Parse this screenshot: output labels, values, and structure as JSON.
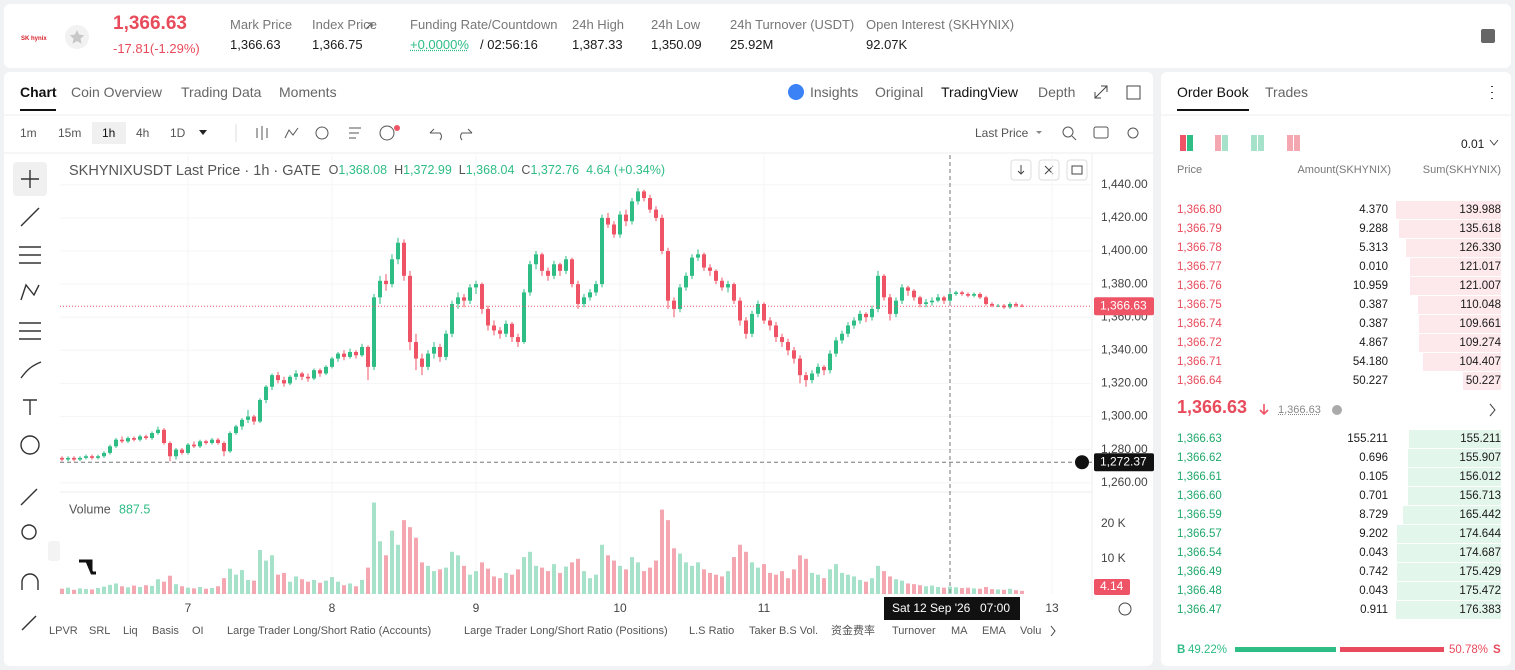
{
  "header": {
    "logo": "SK hynix",
    "price": "1,366.63",
    "change": "-17.81(-1.29%)",
    "stats": [
      {
        "label": "Mark Price",
        "value": "1,366.63"
      },
      {
        "label": "Index Price",
        "value": "1,366.75"
      },
      {
        "label": "Funding Rate/Countdown",
        "value": "+0.0000%",
        "extra": "/ 02:56:16"
      },
      {
        "label": "24h High",
        "value": "1,387.33"
      },
      {
        "label": "24h Low",
        "value": "1,350.09"
      },
      {
        "label": "24h Turnover (USDT)",
        "value": "25.92M"
      },
      {
        "label": "Open Interest (SKHYNIX)",
        "value": "92.07K"
      }
    ]
  },
  "chart_tabs": [
    "Chart",
    "Coin Overview",
    "Trading Data",
    "Moments"
  ],
  "view_tabs": [
    "Insights",
    "Original",
    "TradingView",
    "Depth"
  ],
  "intervals": [
    "1m",
    "15m",
    "1h",
    "4h",
    "1D"
  ],
  "selected_interval": "1h",
  "price_source": "Last Price",
  "indicators": [
    "LPVR",
    "SRL",
    "Liq",
    "Basis",
    "OI",
    "Large Trader Long/Short Ratio (Accounts)",
    "Large Trader Long/Short Ratio (Positions)",
    "L.S Ratio",
    "Taker B.S Vol.",
    "资金费率",
    "Turnover",
    "MA",
    "EMA",
    "Volu"
  ],
  "chart_data": {
    "type": "candlestick",
    "title": "SKHYNIXUSDT Last Price · 1h · GATE",
    "ohlc_legend": [
      {
        "key": "O",
        "value": "1,368.08"
      },
      {
        "key": "H",
        "value": "1,372.99"
      },
      {
        "key": "L",
        "value": "1,368.04"
      },
      {
        "key": "C",
        "value": "1,372.76"
      }
    ],
    "ohlc_change": "4.64 (+0.34%)",
    "up_color": "#2ebd85",
    "down_color": "#ef5466",
    "volume_up_color": "#a6e2c9",
    "volume_down_color": "#f4a7b1",
    "ylim": [
      1255,
      1458
    ],
    "yticks": [
      {
        "value": 1260,
        "label": "1,260.00"
      },
      {
        "value": 1280,
        "label": "1,280.00"
      },
      {
        "value": 1300,
        "label": "1,300.00"
      },
      {
        "value": 1320,
        "label": "1,320.00"
      },
      {
        "value": 1340,
        "label": "1,340.00"
      },
      {
        "value": 1360,
        "label": "1,360.00"
      },
      {
        "value": 1380,
        "label": "1,380.00"
      },
      {
        "value": 1400,
        "label": "1,400.00"
      },
      {
        "value": 1420,
        "label": "1,420.00"
      },
      {
        "value": 1440,
        "label": "1,440.00"
      }
    ],
    "xticks": [
      {
        "value": 21,
        "label": "7"
      },
      {
        "value": 45,
        "label": "8"
      },
      {
        "value": 69,
        "label": "9"
      },
      {
        "value": 93,
        "label": "10"
      },
      {
        "value": 117,
        "label": "11"
      },
      {
        "value": 165,
        "label": "13"
      }
    ],
    "grid": true,
    "last_price": {
      "value": 1366.63,
      "label": "1,366.63"
    },
    "crosshair": {
      "index": 148,
      "price": {
        "value": 1272.37,
        "label": "1,272.37"
      },
      "date": "Sat 12 Sep '26",
      "time": "07:00"
    },
    "volume_title": "Volume",
    "volume_ylim": [
      0,
      29000
    ],
    "volume_yticks": [
      {
        "value": 10000,
        "label": "10 K"
      },
      {
        "value": 20000,
        "label": "20 K"
      }
    ],
    "volume_marker": "4.14",
    "candles": [
      [
        1275,
        1276,
        1273,
        1274
      ],
      [
        1274,
        1276,
        1273,
        1275
      ],
      [
        1275,
        1276,
        1273,
        1274
      ],
      [
        1274,
        1276,
        1273,
        1275
      ],
      [
        1275,
        1277,
        1274,
        1276
      ],
      [
        1276,
        1277,
        1274,
        1275
      ],
      [
        1275,
        1277,
        1274,
        1276
      ],
      [
        1276,
        1279,
        1275,
        1278
      ],
      [
        1278,
        1283,
        1277,
        1282
      ],
      [
        1282,
        1287,
        1281,
        1286
      ],
      [
        1286,
        1288,
        1284,
        1285
      ],
      [
        1285,
        1288,
        1284,
        1287
      ],
      [
        1287,
        1288,
        1285,
        1286
      ],
      [
        1286,
        1289,
        1285,
        1288
      ],
      [
        1288,
        1289,
        1286,
        1287
      ],
      [
        1287,
        1291,
        1286,
        1290
      ],
      [
        1290,
        1294,
        1289,
        1292
      ],
      [
        1292,
        1293,
        1283,
        1284
      ],
      [
        1284,
        1285,
        1273,
        1276
      ],
      [
        1276,
        1281,
        1274,
        1280
      ],
      [
        1280,
        1281,
        1277,
        1278
      ],
      [
        1278,
        1284,
        1277,
        1283
      ],
      [
        1283,
        1285,
        1281,
        1282
      ],
      [
        1282,
        1286,
        1281,
        1285
      ],
      [
        1285,
        1286,
        1283,
        1284
      ],
      [
        1284,
        1287,
        1283,
        1286
      ],
      [
        1286,
        1287,
        1283,
        1284
      ],
      [
        1284,
        1285,
        1276,
        1279
      ],
      [
        1279,
        1291,
        1278,
        1290
      ],
      [
        1290,
        1295,
        1289,
        1294
      ],
      [
        1294,
        1299,
        1292,
        1298
      ],
      [
        1298,
        1304,
        1296,
        1300
      ],
      [
        1300,
        1301,
        1295,
        1297
      ],
      [
        1297,
        1311,
        1296,
        1310
      ],
      [
        1310,
        1319,
        1308,
        1318
      ],
      [
        1318,
        1326,
        1316,
        1325
      ],
      [
        1325,
        1327,
        1320,
        1322
      ],
      [
        1322,
        1324,
        1318,
        1320
      ],
      [
        1320,
        1325,
        1319,
        1324
      ],
      [
        1324,
        1328,
        1322,
        1326
      ],
      [
        1326,
        1327,
        1322,
        1324
      ],
      [
        1324,
        1326,
        1321,
        1323
      ],
      [
        1323,
        1329,
        1322,
        1328
      ],
      [
        1328,
        1329,
        1324,
        1326
      ],
      [
        1326,
        1331,
        1325,
        1330
      ],
      [
        1330,
        1336,
        1329,
        1335
      ],
      [
        1335,
        1339,
        1333,
        1338
      ],
      [
        1338,
        1340,
        1334,
        1336
      ],
      [
        1336,
        1341,
        1335,
        1339
      ],
      [
        1339,
        1340,
        1335,
        1337
      ],
      [
        1337,
        1344,
        1336,
        1342
      ],
      [
        1342,
        1343,
        1322,
        1330
      ],
      [
        1330,
        1374,
        1328,
        1372
      ],
      [
        1372,
        1385,
        1368,
        1382
      ],
      [
        1382,
        1386,
        1376,
        1380
      ],
      [
        1380,
        1398,
        1378,
        1395
      ],
      [
        1395,
        1408,
        1392,
        1405
      ],
      [
        1405,
        1407,
        1382,
        1385
      ],
      [
        1385,
        1388,
        1340,
        1345
      ],
      [
        1345,
        1350,
        1328,
        1335
      ],
      [
        1335,
        1338,
        1325,
        1330
      ],
      [
        1330,
        1340,
        1328,
        1338
      ],
      [
        1338,
        1345,
        1335,
        1342
      ],
      [
        1342,
        1344,
        1333,
        1336
      ],
      [
        1336,
        1352,
        1334,
        1350
      ],
      [
        1350,
        1370,
        1348,
        1368
      ],
      [
        1368,
        1375,
        1365,
        1372
      ],
      [
        1372,
        1374,
        1366,
        1370
      ],
      [
        1370,
        1380,
        1368,
        1378
      ],
      [
        1378,
        1382,
        1374,
        1380
      ],
      [
        1380,
        1381,
        1362,
        1365
      ],
      [
        1365,
        1367,
        1352,
        1355
      ],
      [
        1355,
        1358,
        1349,
        1352
      ],
      [
        1352,
        1354,
        1347,
        1350
      ],
      [
        1350,
        1358,
        1348,
        1356
      ],
      [
        1356,
        1357,
        1345,
        1348
      ],
      [
        1348,
        1350,
        1342,
        1345
      ],
      [
        1345,
        1377,
        1344,
        1375
      ],
      [
        1375,
        1394,
        1373,
        1392
      ],
      [
        1392,
        1400,
        1389,
        1398
      ],
      [
        1398,
        1399,
        1385,
        1388
      ],
      [
        1388,
        1390,
        1382,
        1385
      ],
      [
        1385,
        1394,
        1383,
        1392
      ],
      [
        1392,
        1393,
        1385,
        1388
      ],
      [
        1388,
        1397,
        1386,
        1395
      ],
      [
        1395,
        1396,
        1378,
        1380
      ],
      [
        1380,
        1382,
        1365,
        1368
      ],
      [
        1368,
        1374,
        1366,
        1372
      ],
      [
        1372,
        1377,
        1370,
        1375
      ],
      [
        1375,
        1382,
        1373,
        1380
      ],
      [
        1380,
        1422,
        1378,
        1420
      ],
      [
        1420,
        1423,
        1414,
        1416
      ],
      [
        1416,
        1418,
        1408,
        1410
      ],
      [
        1410,
        1424,
        1408,
        1422
      ],
      [
        1422,
        1425,
        1415,
        1418
      ],
      [
        1418,
        1432,
        1416,
        1430
      ],
      [
        1430,
        1438,
        1428,
        1436
      ],
      [
        1436,
        1437,
        1430,
        1432
      ],
      [
        1432,
        1434,
        1423,
        1425
      ],
      [
        1425,
        1427,
        1418,
        1420
      ],
      [
        1420,
        1422,
        1398,
        1400
      ],
      [
        1400,
        1402,
        1365,
        1370
      ],
      [
        1370,
        1372,
        1360,
        1365
      ],
      [
        1365,
        1380,
        1363,
        1378
      ],
      [
        1378,
        1387,
        1376,
        1385
      ],
      [
        1385,
        1398,
        1383,
        1396
      ],
      [
        1396,
        1401,
        1394,
        1398
      ],
      [
        1398,
        1399,
        1388,
        1390
      ],
      [
        1390,
        1392,
        1385,
        1388
      ],
      [
        1388,
        1389,
        1380,
        1382
      ],
      [
        1382,
        1384,
        1376,
        1378
      ],
      [
        1378,
        1382,
        1375,
        1380
      ],
      [
        1380,
        1381,
        1368,
        1370
      ],
      [
        1370,
        1372,
        1355,
        1358
      ],
      [
        1358,
        1360,
        1347,
        1350
      ],
      [
        1350,
        1364,
        1348,
        1362
      ],
      [
        1362,
        1370,
        1360,
        1368
      ],
      [
        1368,
        1369,
        1356,
        1358
      ],
      [
        1358,
        1360,
        1352,
        1355
      ],
      [
        1355,
        1357,
        1345,
        1348
      ],
      [
        1348,
        1350,
        1342,
        1345
      ],
      [
        1345,
        1347,
        1337,
        1340
      ],
      [
        1340,
        1342,
        1332,
        1335
      ],
      [
        1335,
        1337,
        1320,
        1325
      ],
      [
        1325,
        1327,
        1318,
        1322
      ],
      [
        1322,
        1328,
        1320,
        1326
      ],
      [
        1326,
        1332,
        1324,
        1330
      ],
      [
        1330,
        1331,
        1325,
        1328
      ],
      [
        1328,
        1340,
        1326,
        1338
      ],
      [
        1338,
        1348,
        1336,
        1346
      ],
      [
        1346,
        1352,
        1344,
        1350
      ],
      [
        1350,
        1357,
        1348,
        1355
      ],
      [
        1355,
        1360,
        1353,
        1358
      ],
      [
        1358,
        1364,
        1356,
        1362
      ],
      [
        1362,
        1363,
        1357,
        1360
      ],
      [
        1360,
        1367,
        1358,
        1365
      ],
      [
        1365,
        1388,
        1363,
        1385
      ],
      [
        1385,
        1386,
        1370,
        1372
      ],
      [
        1372,
        1374,
        1358,
        1362
      ],
      [
        1362,
        1372,
        1360,
        1370
      ],
      [
        1370,
        1380,
        1368,
        1378
      ],
      [
        1378,
        1379,
        1373,
        1376
      ],
      [
        1376,
        1377,
        1370,
        1372
      ],
      [
        1372,
        1373,
        1366,
        1368
      ],
      [
        1368,
        1371,
        1366,
        1369
      ],
      [
        1369,
        1372,
        1367,
        1370
      ],
      [
        1370,
        1374,
        1369,
        1372
      ],
      [
        1372,
        1373,
        1368,
        1370
      ],
      [
        1370,
        1376,
        1369,
        1374
      ],
      [
        1374,
        1376,
        1373,
        1375
      ],
      [
        1375,
        1376,
        1373,
        1374
      ],
      [
        1374,
        1375,
        1372,
        1373
      ],
      [
        1373,
        1375,
        1372,
        1374
      ],
      [
        1374,
        1375,
        1371,
        1372
      ],
      [
        1372,
        1373,
        1367,
        1368
      ],
      [
        1368,
        1369,
        1366,
        1367
      ],
      [
        1367,
        1368,
        1366,
        1367
      ],
      [
        1367,
        1368,
        1365,
        1366
      ],
      [
        1366,
        1369,
        1365,
        1368
      ],
      [
        1368,
        1369,
        1366,
        1367
      ],
      [
        1367,
        1368,
        1366,
        1366.63
      ]
    ],
    "volume": [
      1500,
      1800,
      1200,
      1600,
      1400,
      1300,
      1700,
      2100,
      2600,
      3000,
      2200,
      1900,
      2400,
      2000,
      2500,
      2300,
      4200,
      3500,
      5200,
      2800,
      2200,
      1800,
      1600,
      2000,
      1500,
      1700,
      2200,
      4500,
      7200,
      5500,
      6800,
      4000,
      3800,
      12500,
      9500,
      11000,
      5500,
      6000,
      3500,
      5000,
      4200,
      3500,
      4000,
      3200,
      3800,
      4800,
      3500,
      2500,
      3000,
      2200,
      4000,
      7500,
      26000,
      15000,
      11000,
      18000,
      14000,
      21000,
      19000,
      16000,
      9000,
      8000,
      6500,
      7000,
      7500,
      12000,
      11000,
      8000,
      5500,
      6500,
      9000,
      7200,
      5000,
      4500,
      6000,
      5500,
      7000,
      10500,
      12000,
      8000,
      7500,
      6500,
      8500,
      6000,
      7800,
      9000,
      10000,
      6500,
      4500,
      5500,
      14000,
      11000,
      9500,
      8000,
      7000,
      10500,
      9000,
      6500,
      7500,
      9500,
      24000,
      21000,
      13000,
      11500,
      9000,
      8000,
      9000,
      7000,
      6000,
      5500,
      5000,
      6500,
      10500,
      14000,
      12000,
      9000,
      7500,
      8500,
      6000,
      5500,
      6500,
      4500,
      7000,
      11000,
      10000,
      6000,
      5500,
      4500,
      7000,
      8500,
      6000,
      5500,
      5000,
      4000,
      3500,
      4500,
      8000,
      6500,
      5000,
      4200,
      3800,
      3000,
      2800,
      2500,
      2200,
      2400,
      2000,
      1800,
      2100,
      1900,
      1700,
      1800,
      1600,
      1500,
      2000,
      1400,
      1300,
      1200,
      1500,
      1100,
      887.5
    ]
  },
  "order_book": {
    "tabs": [
      "Order Book",
      "Trades"
    ],
    "step": "0.01",
    "headers": [
      "Price",
      "Amount(SKHYNIX)",
      "Sum(SKHYNIX)"
    ],
    "ask_color": "#fde9ec",
    "bid_color": "#e3f6ec",
    "asks": [
      {
        "price": "1,366.80",
        "amount": "4.370",
        "sum": 139.988
      },
      {
        "price": "1,366.79",
        "amount": "9.288",
        "sum": 135.618
      },
      {
        "price": "1,366.78",
        "amount": "5.313",
        "sum": {
          "value": 126.33,
          "label": "126.330"
        }
      },
      {
        "price": "1,366.77",
        "amount": "0.010",
        "sum": 121.017
      },
      {
        "price": "1,366.76",
        "amount": "10.959",
        "sum": 121.007
      },
      {
        "price": "1,366.75",
        "amount": "0.387",
        "sum": 110.048
      },
      {
        "price": "1,366.74",
        "amount": "0.387",
        "sum": 109.661
      },
      {
        "price": "1,366.72",
        "amount": "4.867",
        "sum": 109.274
      },
      {
        "price": "1,366.71",
        "amount": "54.180",
        "sum": 104.407
      },
      {
        "price": "1,366.64",
        "amount": "50.227",
        "sum": 50.227
      }
    ],
    "last": "1,366.63",
    "mark": "1,366.63",
    "bids": [
      {
        "price": "1,366.63",
        "amount": "155.211",
        "sum": 155.211
      },
      {
        "price": "1,366.62",
        "amount": "0.696",
        "sum": 155.907
      },
      {
        "price": "1,366.61",
        "amount": "0.105",
        "sum": 156.012
      },
      {
        "price": "1,366.60",
        "amount": "0.701",
        "sum": 156.713
      },
      {
        "price": "1,366.59",
        "amount": "8.729",
        "sum": 165.442
      },
      {
        "price": "1,366.57",
        "amount": "9.202",
        "sum": 174.644
      },
      {
        "price": "1,366.54",
        "amount": "0.043",
        "sum": 174.687
      },
      {
        "price": "1,366.49",
        "amount": "0.742",
        "sum": 175.429
      },
      {
        "price": "1,366.48",
        "amount": "0.043",
        "sum": 175.472
      },
      {
        "price": "1,366.47",
        "amount": "0.911",
        "sum": 176.383
      }
    ],
    "buy_key": "B",
    "buy": {
      "value": 49.22,
      "label": "49.22%"
    },
    "sell": {
      "value": 50.78,
      "label": "50.78%"
    },
    "sell_key": "S"
  }
}
